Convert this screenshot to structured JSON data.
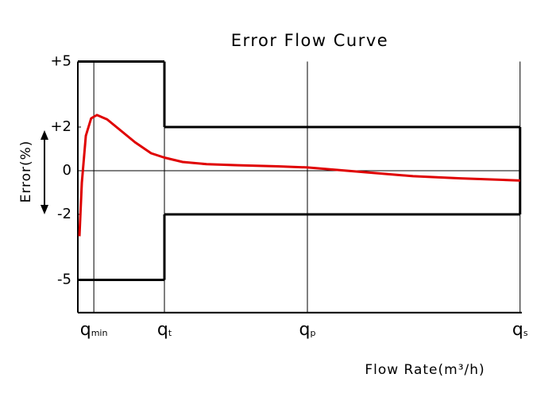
{
  "chart_data": {
    "type": "line",
    "title": "Error Flow Curve",
    "x_label": "Flow Rate(m³/h)",
    "y_label": "Error(%)",
    "xlim": [
      0,
      100
    ],
    "ylim": [
      -6.5,
      5
    ],
    "xticks": [
      {
        "value": 3.6,
        "label": "q",
        "sub": "min"
      },
      {
        "value": 19.5,
        "label": "q",
        "sub": "t"
      },
      {
        "value": 51.7,
        "label": "q",
        "sub": "p"
      },
      {
        "value": 99.6,
        "label": "q",
        "sub": "s"
      }
    ],
    "yticks": [
      {
        "value": 5,
        "label": "+5"
      },
      {
        "value": 2,
        "label": "+2"
      },
      0,
      -2,
      -5
    ],
    "x_grid": true,
    "zero_line": true,
    "limits": [
      {
        "x": [
          0,
          19.5
        ],
        "upper": 5,
        "lower": -5
      },
      {
        "x": [
          19.5,
          99.6
        ],
        "upper": 2,
        "lower": -2
      }
    ],
    "series": [
      {
        "color": "#e00000",
        "x": [
          0.36,
          0.9,
          1.8,
          3.0,
          4.3,
          6.6,
          9.3,
          12.9,
          16.5,
          19.5,
          23.6,
          29.0,
          36.1,
          45.1,
          51.7,
          57.6,
          66.5,
          75.5,
          86.2,
          99.6
        ],
        "values": [
          -3.0,
          -0.55,
          1.6,
          2.4,
          2.55,
          2.35,
          1.9,
          1.3,
          0.8,
          0.6,
          0.4,
          0.3,
          0.25,
          0.2,
          0.15,
          0.05,
          -0.1,
          -0.25,
          -0.35,
          -0.45
        ]
      }
    ]
  }
}
